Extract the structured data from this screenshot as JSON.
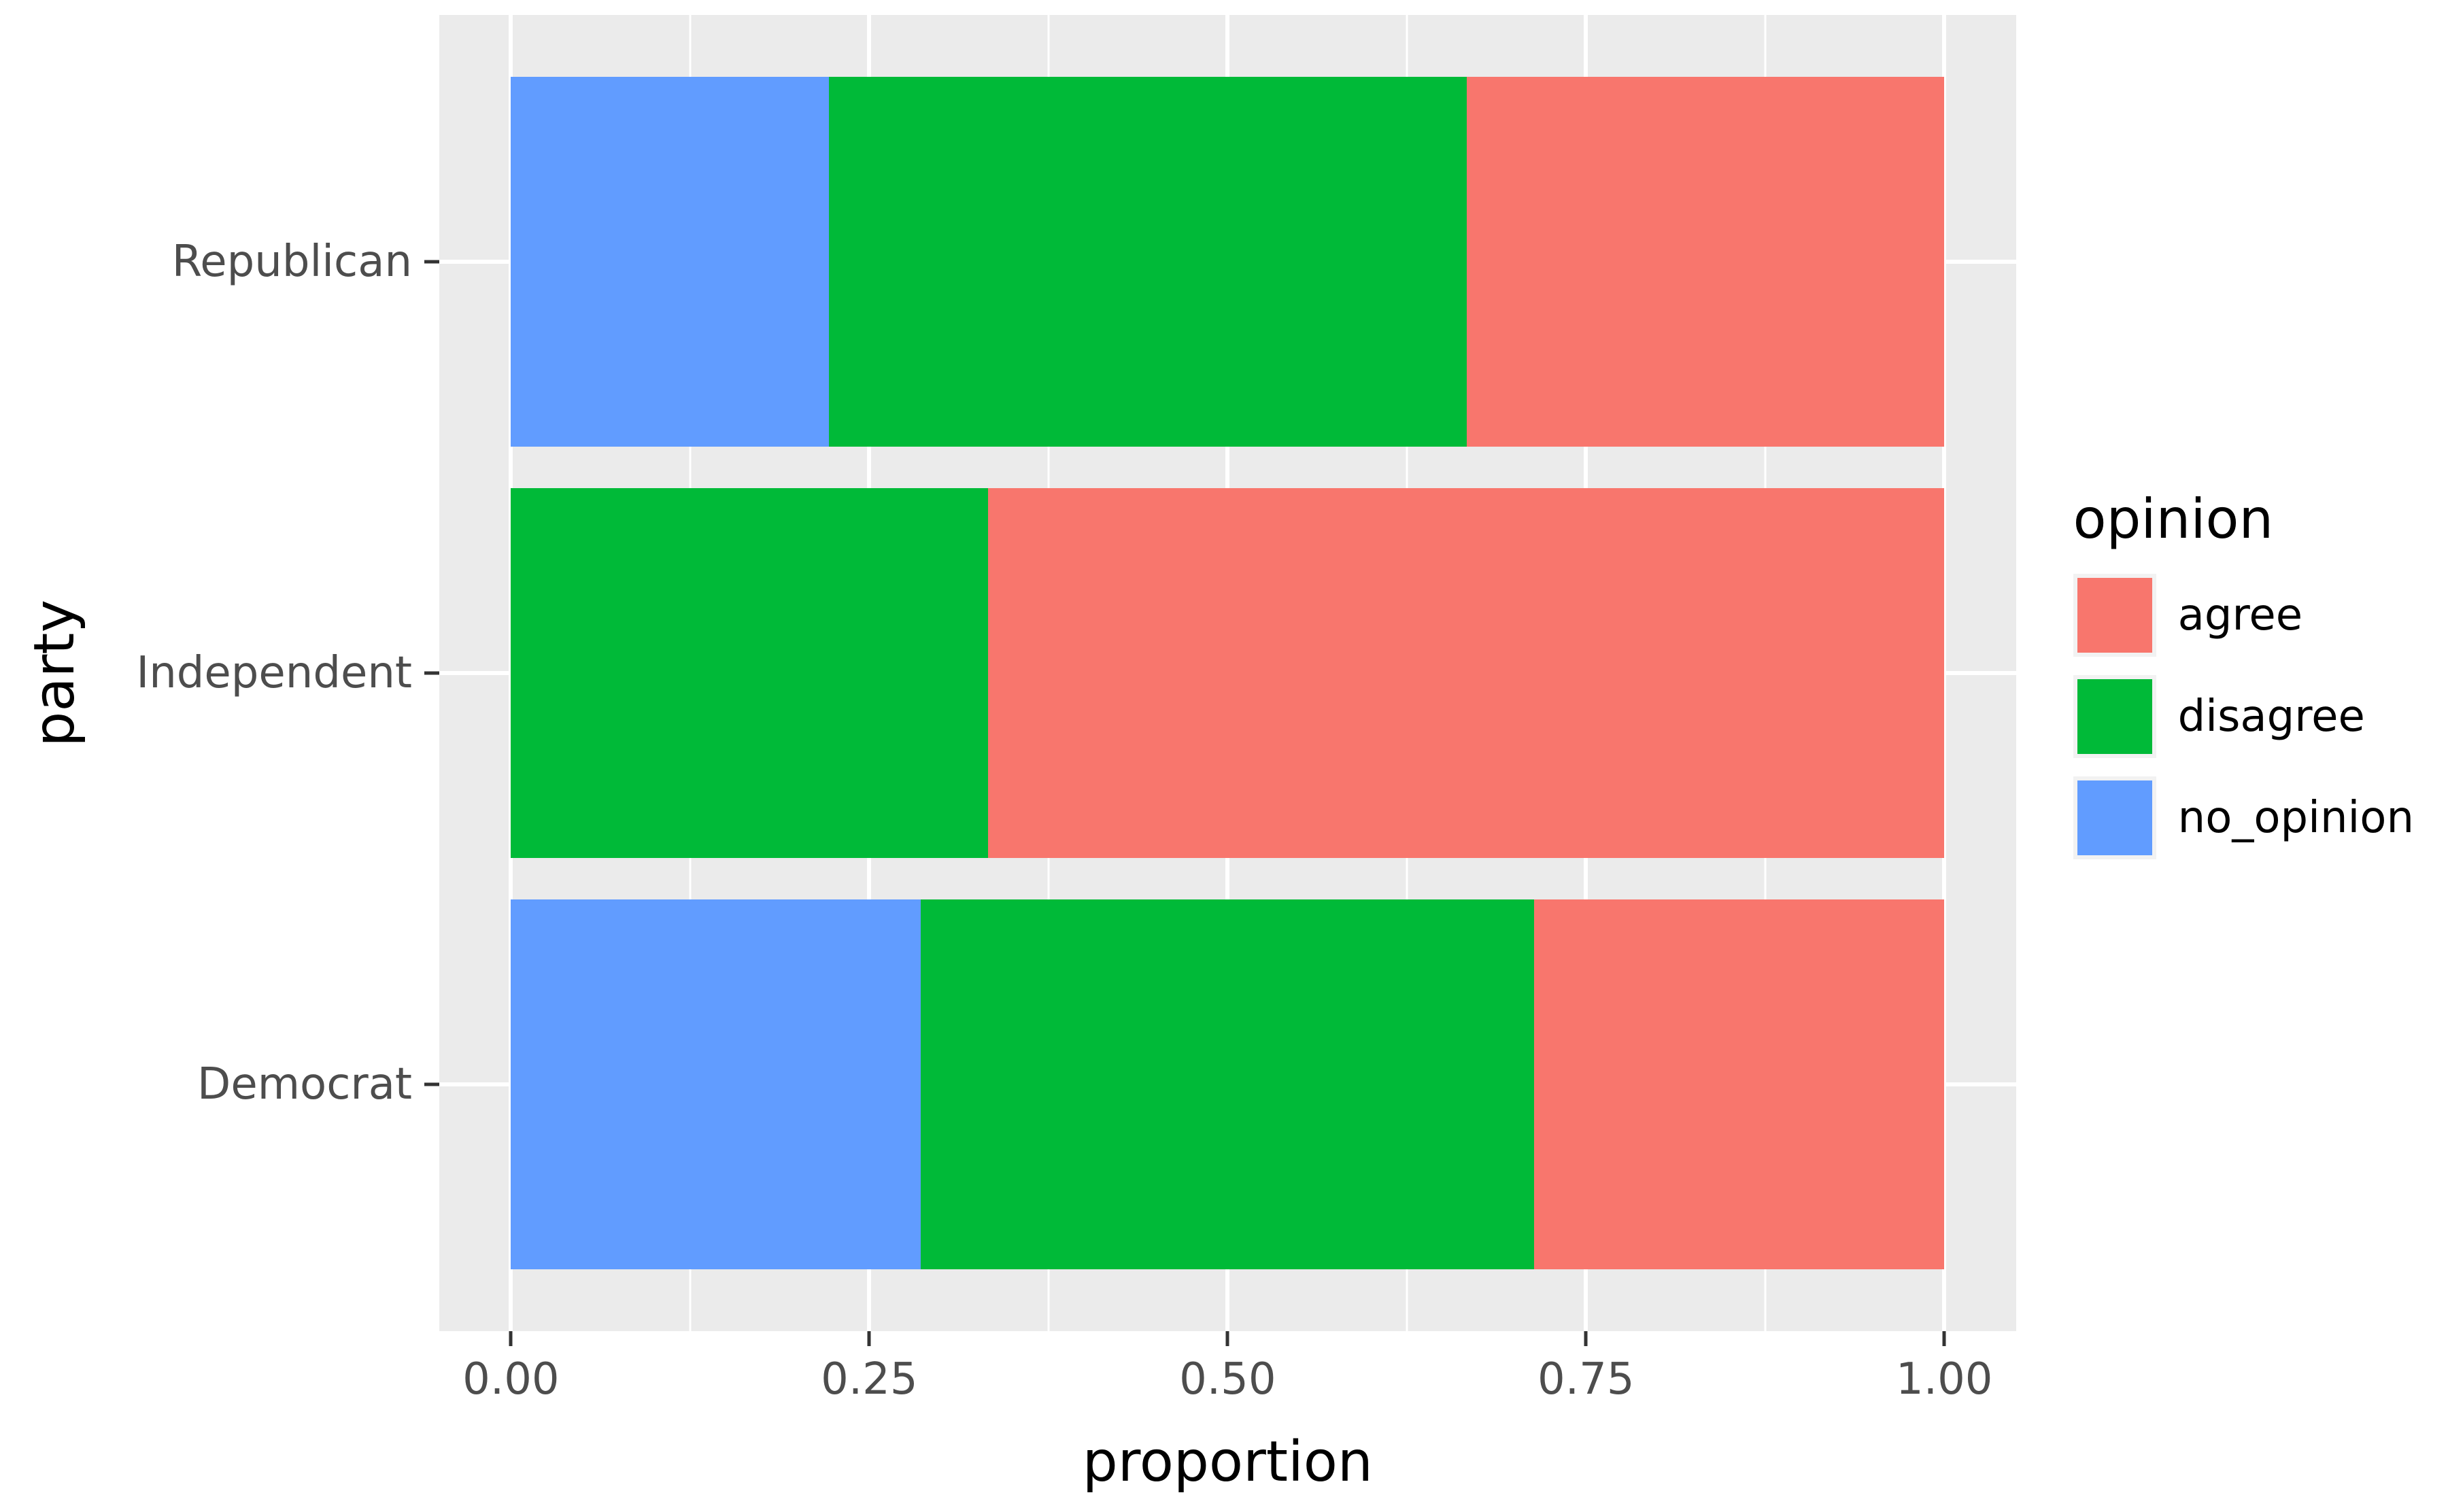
{
  "chart_data": {
    "type": "bar",
    "orientation": "horizontal",
    "stacked": true,
    "xlabel": "proportion",
    "ylabel": "party",
    "categories": [
      "Democrat",
      "Independent",
      "Republican"
    ],
    "series": [
      {
        "name": "agree",
        "color": "#F8766D",
        "values": [
          0.286,
          0.667,
          0.333
        ]
      },
      {
        "name": "disagree",
        "color": "#00BA38",
        "values": [
          0.428,
          0.333,
          0.445
        ]
      },
      {
        "name": "no_opinion",
        "color": "#619CFF",
        "values": [
          0.286,
          0.0,
          0.222
        ]
      }
    ],
    "xlim": [
      0,
      1
    ],
    "x_ticks": [
      0,
      0.25,
      0.5,
      0.75,
      1
    ],
    "x_tick_labels": [
      "0.00",
      "0.25",
      "0.50",
      "0.75",
      "1.00"
    ],
    "x_minor_ticks": [
      0.125,
      0.375,
      0.625,
      0.875
    ],
    "legend": {
      "title": "opinion",
      "position": "right"
    },
    "style": {
      "panel_background": "#EBEBEB",
      "grid_color": "#FFFFFF",
      "tick_color": "#333333",
      "tick_label_color": "#4D4D4D",
      "axis_title_color": "#000000",
      "legend_key_background": "#F2F2F2",
      "bar_width_frac": 0.9,
      "x_expand_mult": 0.05,
      "y_expand_add": 0.6
    }
  }
}
